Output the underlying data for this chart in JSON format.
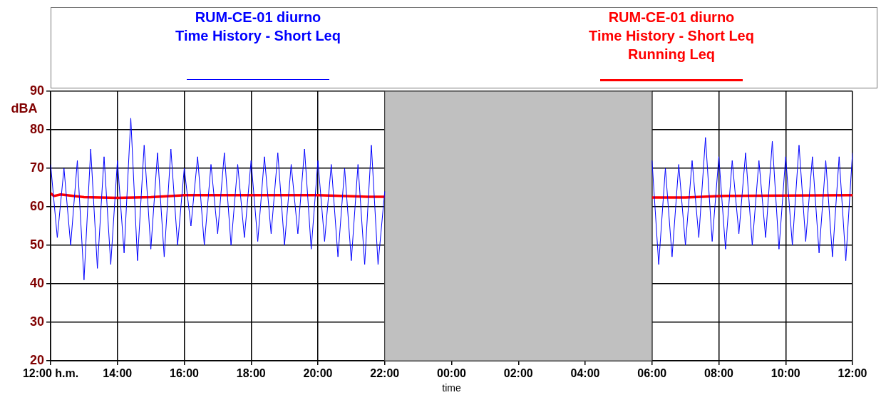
{
  "chart_data": {
    "type": "line",
    "xlabel": "time",
    "ylabel": "dBA",
    "xlim": [
      "--01-01T12:00",
      "--01-02T12:00"
    ],
    "xticks": [
      {
        "value": "--01-01T12:00",
        "label": "12:00 h.m."
      },
      {
        "value": "--01-01T14:00",
        "label": "14:00"
      },
      {
        "value": "--01-01T16:00",
        "label": "16:00"
      },
      {
        "value": "--01-01T18:00",
        "label": "18:00"
      },
      {
        "value": "--01-01T20:00",
        "label": "20:00"
      },
      {
        "value": "--01-01T22:00",
        "label": "22:00"
      },
      {
        "value": "--01-02T00:00",
        "label": "00:00"
      },
      {
        "value": "--01-02T02:00",
        "label": "02:00"
      },
      {
        "value": "--01-02T04:00",
        "label": "04:00"
      },
      {
        "value": "--01-02T06:00",
        "label": "06:00"
      },
      {
        "value": "--01-02T08:00",
        "label": "08:00"
      },
      {
        "value": "--01-02T10:00",
        "label": "10:00"
      },
      {
        "value": "--01-02T12:00",
        "label": "12:00"
      }
    ],
    "ylim": [
      20,
      90
    ],
    "yticks": [
      20,
      30,
      40,
      50,
      60,
      70,
      80,
      90
    ],
    "grid": true,
    "legend": "top",
    "marker": "none",
    "line_style": "solid",
    "bands": [
      {
        "axis": "x",
        "from": "--01-01T22:00",
        "to": "--01-02T06:00",
        "color": "#c0c0c0"
      }
    ],
    "series": [
      {
        "name": "RUM-CE-01 diurno\nTime History - Short Leq",
        "color": "#0000ff",
        "x": [
          "--01-01T12:00",
          "--01-01T12:12",
          "--01-01T12:24",
          "--01-01T12:36",
          "--01-01T12:48",
          "--01-01T13:00",
          "--01-01T13:12",
          "--01-01T13:24",
          "--01-01T13:36",
          "--01-01T13:48",
          "--01-01T14:00",
          "--01-01T14:12",
          "--01-01T14:24",
          "--01-01T14:36",
          "--01-01T14:48",
          "--01-01T15:00",
          "--01-01T15:12",
          "--01-01T15:24",
          "--01-01T15:36",
          "--01-01T15:48",
          "--01-01T16:00",
          "--01-01T16:12",
          "--01-01T16:24",
          "--01-01T16:36",
          "--01-01T16:48",
          "--01-01T17:00",
          "--01-01T17:12",
          "--01-01T17:24",
          "--01-01T17:36",
          "--01-01T17:48",
          "--01-01T18:00",
          "--01-01T18:12",
          "--01-01T18:24",
          "--01-01T18:36",
          "--01-01T18:48",
          "--01-01T19:00",
          "--01-01T19:12",
          "--01-01T19:24",
          "--01-01T19:36",
          "--01-01T19:48",
          "--01-01T20:00",
          "--01-01T20:12",
          "--01-01T20:24",
          "--01-01T20:36",
          "--01-01T20:48",
          "--01-01T21:00",
          "--01-01T21:12",
          "--01-01T21:24",
          "--01-01T21:36",
          "--01-01T21:48",
          "--01-01T22:00",
          "--01-02T02:00",
          "--01-02T06:00",
          "--01-02T06:12",
          "--01-02T06:24",
          "--01-02T06:36",
          "--01-02T06:48",
          "--01-02T07:00",
          "--01-02T07:12",
          "--01-02T07:24",
          "--01-02T07:36",
          "--01-02T07:48",
          "--01-02T08:00",
          "--01-02T08:12",
          "--01-02T08:24",
          "--01-02T08:36",
          "--01-02T08:48",
          "--01-02T09:00",
          "--01-02T09:12",
          "--01-02T09:24",
          "--01-02T09:36",
          "--01-02T09:48",
          "--01-02T10:00",
          "--01-02T10:12",
          "--01-02T10:24",
          "--01-02T10:36",
          "--01-02T10:48",
          "--01-02T11:00",
          "--01-02T11:12",
          "--01-02T11:24",
          "--01-02T11:36",
          "--01-02T11:48",
          "--01-02T12:00"
        ],
        "values": [
          71,
          52,
          70,
          50,
          72,
          41,
          75,
          44,
          73,
          45,
          72,
          48,
          83,
          46,
          76,
          49,
          74,
          47,
          75,
          50,
          70,
          55,
          73,
          50,
          71,
          53,
          74,
          50,
          71,
          52,
          72,
          51,
          73,
          53,
          74,
          50,
          71,
          53,
          75,
          49,
          72,
          51,
          71,
          47,
          70,
          46,
          71,
          45,
          76,
          45,
          64,
          null,
          72,
          45,
          70,
          47,
          71,
          50,
          72,
          52,
          78,
          51,
          73,
          49,
          72,
          53,
          74,
          50,
          72,
          52,
          77,
          49,
          73,
          50,
          76,
          51,
          73,
          48,
          72,
          47,
          73,
          46,
          74
        ]
      },
      {
        "name": "RUM-CE-01 diurno\nTime History - Short Leq\nRunning Leq",
        "color": "#ff0000",
        "x": [
          "--01-01T12:00",
          "--01-01T12:06",
          "--01-01T12:18",
          "--01-01T13:00",
          "--01-01T14:00",
          "--01-01T15:00",
          "--01-01T16:00",
          "--01-01T18:00",
          "--01-01T20:00",
          "--01-01T21:30",
          "--01-01T22:00",
          "--01-02T02:00",
          "--01-02T06:00",
          "--01-02T07:00",
          "--01-02T08:00",
          "--01-02T10:00",
          "--01-02T12:00"
        ],
        "values": [
          63.5,
          62.8,
          63.2,
          62.5,
          62.3,
          62.5,
          63,
          63,
          63,
          62.6,
          62.6,
          null,
          62.4,
          62.4,
          62.8,
          62.9,
          63
        ]
      }
    ]
  }
}
